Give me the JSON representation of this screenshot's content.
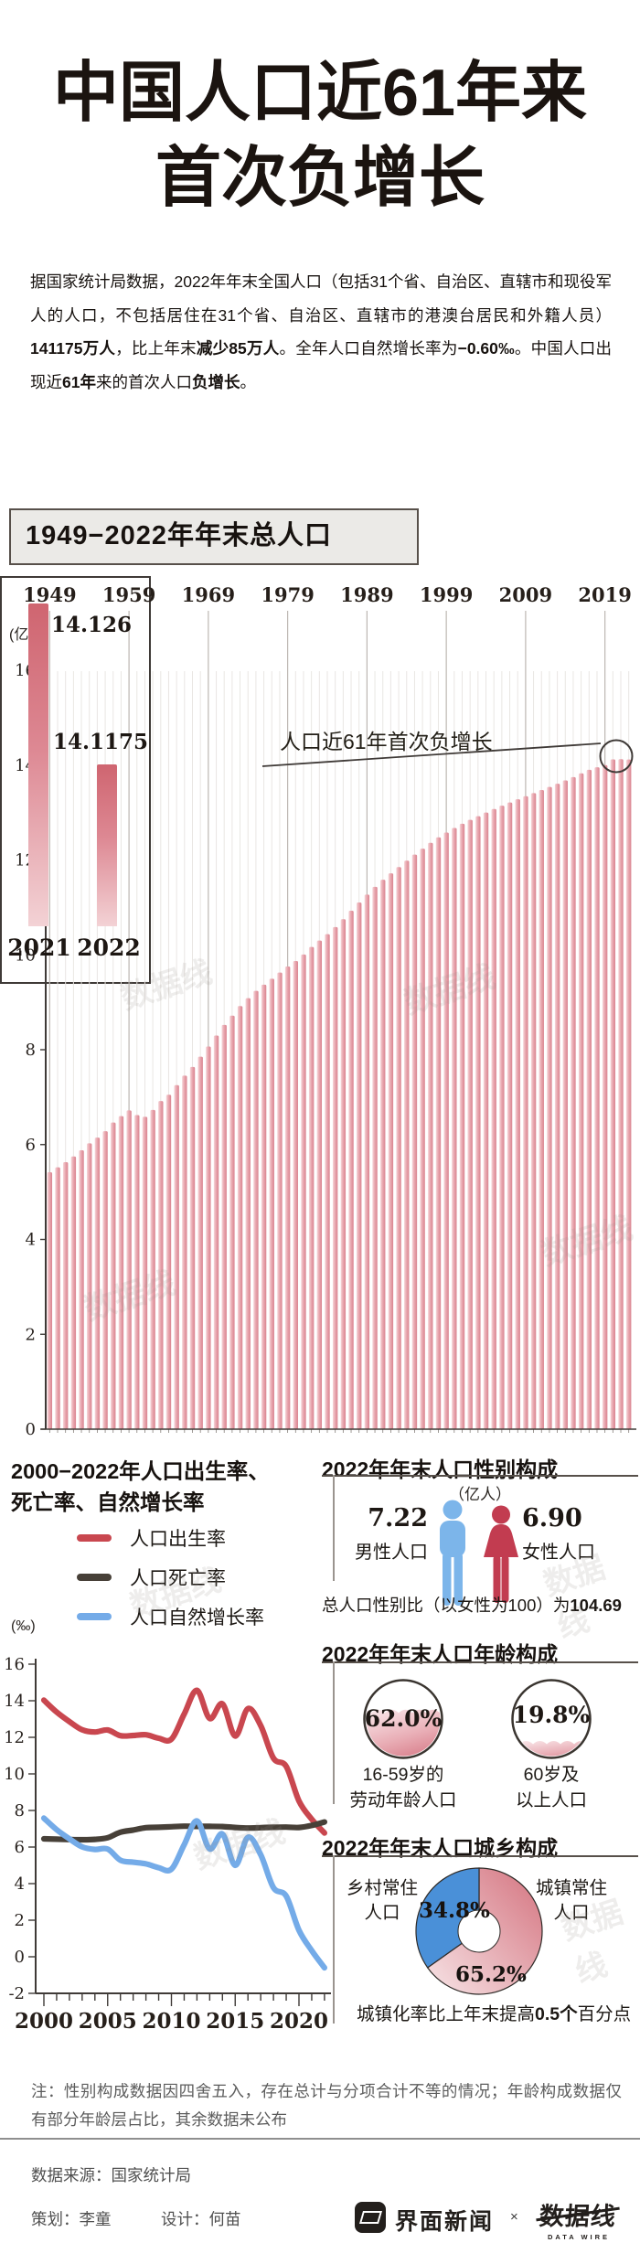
{
  "title": {
    "line1": "中国人口近61年来",
    "line2": "首次负增长"
  },
  "intro_segments": [
    {
      "t": "据国家统计局数据，2022年年末全国人口（包括31个省、自治区、直辖市和现役军人的人口，不包括居住在31个省、自治区、直辖市的港澳台居民和外籍人员）",
      "b": 0
    },
    {
      "t": "141175万人",
      "b": 1
    },
    {
      "t": "，比上年末",
      "b": 0
    },
    {
      "t": "减少85万人",
      "b": 1
    },
    {
      "t": "。全年人口自然增长率为",
      "b": 0
    },
    {
      "t": "−0.60‰",
      "b": 1
    },
    {
      "t": "。中国人口出现近",
      "b": 0
    },
    {
      "t": "61年",
      "b": 1
    },
    {
      "t": "来的首次人口",
      "b": 0
    },
    {
      "t": "负增长",
      "b": 1
    },
    {
      "t": "。",
      "b": 0
    }
  ],
  "chart_data": [
    {
      "id": "population_total",
      "type": "bar",
      "title": "1949−2022年年末总人口",
      "unit_label": "(亿人)",
      "start_year": 1949,
      "end_year": 2022,
      "decade_labels": [
        "1949",
        "1959",
        "1969",
        "1979",
        "1989",
        "1999",
        "2009",
        "2019"
      ],
      "ylim": [
        0,
        16
      ],
      "yticks": [
        0,
        2,
        4,
        6,
        8,
        10,
        12,
        14,
        16
      ],
      "values": [
        5.4167,
        5.5196,
        5.63,
        5.7482,
        5.8796,
        6.0266,
        6.1465,
        6.2828,
        6.4653,
        6.5994,
        6.7207,
        6.6207,
        6.5859,
        6.7295,
        6.9172,
        7.0499,
        7.2538,
        7.4542,
        7.6368,
        7.8534,
        8.0671,
        8.2992,
        8.5229,
        8.7177,
        8.9211,
        9.0859,
        9.242,
        9.3717,
        9.4974,
        9.6259,
        9.7542,
        9.8705,
        10.0072,
        10.1654,
        10.3008,
        10.4357,
        10.5851,
        10.7507,
        10.93,
        11.1026,
        11.2704,
        11.4333,
        11.5823,
        11.7171,
        11.8517,
        11.985,
        12.1121,
        12.2389,
        12.3626,
        12.4761,
        12.5786,
        12.6743,
        12.7627,
        12.8453,
        12.9227,
        12.9988,
        13.0756,
        13.1448,
        13.2129,
        13.2802,
        13.345,
        13.4091,
        13.4735,
        13.5404,
        13.6072,
        13.6782,
        13.7462,
        13.8271,
        13.9008,
        13.9538,
        14.0005,
        14.1212,
        14.126,
        14.1175
      ],
      "inset": {
        "annotation": "人口近61年首次负增长",
        "bars": [
          {
            "year": "2021",
            "value": 14.126,
            "label": "14.126"
          },
          {
            "year": "2022",
            "value": 14.1175,
            "label": "14.1175"
          }
        ]
      }
    },
    {
      "id": "rates",
      "type": "line",
      "title_line1": "2000−2022年人口出生率、",
      "title_line2": "死亡率、自然增长率",
      "unit_label": "(‰)",
      "x_start": 2000,
      "x_end": 2022,
      "xticks": [
        2000,
        2005,
        2010,
        2015,
        2020
      ],
      "ylim": [
        -2,
        16
      ],
      "yticks": [
        -2,
        0,
        2,
        4,
        6,
        8,
        10,
        12,
        14,
        16
      ],
      "series": [
        {
          "name": "人口出生率",
          "color": "#c9474f",
          "values": [
            14.03,
            13.38,
            12.86,
            12.41,
            12.29,
            12.4,
            12.09,
            12.1,
            12.14,
            11.95,
            11.9,
            13.27,
            14.57,
            13.03,
            13.83,
            12.07,
            13.57,
            12.64,
            10.86,
            10.41,
            8.52,
            7.52,
            6.77
          ]
        },
        {
          "name": "人口死亡率",
          "color": "#474038",
          "values": [
            6.45,
            6.43,
            6.41,
            6.4,
            6.42,
            6.51,
            6.81,
            6.93,
            7.06,
            7.08,
            7.11,
            7.14,
            7.13,
            7.13,
            7.12,
            7.07,
            7.04,
            7.06,
            7.08,
            7.09,
            7.07,
            7.18,
            7.37
          ]
        },
        {
          "name": "人口自然增长率",
          "color": "#74abe8",
          "values": [
            7.58,
            6.95,
            6.45,
            6.01,
            5.87,
            5.89,
            5.28,
            5.17,
            5.08,
            4.87,
            4.79,
            6.13,
            7.43,
            5.9,
            6.71,
            5.0,
            6.53,
            5.58,
            3.78,
            3.32,
            1.45,
            0.34,
            -0.6
          ]
        }
      ]
    },
    {
      "id": "age_structure",
      "type": "gauge",
      "title": "2022年年末人口年龄构成",
      "items": [
        {
          "value_pct": 62.0,
          "label": "62.0%",
          "caption_line1": "16-59岁的",
          "caption_line2": "劳动年龄人口"
        },
        {
          "value_pct": 19.8,
          "label": "19.8%",
          "caption_line1": "60岁及",
          "caption_line2": "以上人口"
        }
      ]
    },
    {
      "id": "urban_rural",
      "type": "pie",
      "title": "2022年年末人口城乡构成",
      "slices": [
        {
          "name": "城镇常住人口",
          "label_line1": "城镇常住",
          "label_line2": "人口",
          "value_pct": 65.2,
          "pct_label": "65.2%",
          "color": "#d98a95"
        },
        {
          "name": "乡村常住人口",
          "label_line1": "乡村常住",
          "label_line2": "人口",
          "value_pct": 34.8,
          "pct_label": "34.8%",
          "color": "#4a90d8"
        }
      ],
      "note_prefix": "城镇化率比上年末提高",
      "note_bold": "0.5个",
      "note_suffix": "百分点"
    }
  ],
  "gender": {
    "title": "2022年年末人口性别构成",
    "unit_label": "（亿人）",
    "male": {
      "value": "7.22",
      "label": "男性人口",
      "color": "#7cb5ea"
    },
    "female": {
      "value": "6.90",
      "label": "女性人口",
      "color": "#c23c50"
    },
    "ratio_prefix": "总人口性别比（以女性为100）为",
    "ratio_value": "104.69"
  },
  "notes": {
    "text": "注：性别构成数据因四舍五入，存在总计与分项合计不等的情况；年龄构成数据仅有部分年龄层占比，其余数据未公布"
  },
  "footer": {
    "source": "数据来源：国家统计局",
    "credit_plan": "策划：李童",
    "credit_design": "设计：何苗",
    "brand1": "界面新闻",
    "separator": "×",
    "brand2": "数据线",
    "brand2_sub": "DATA WIRE"
  }
}
